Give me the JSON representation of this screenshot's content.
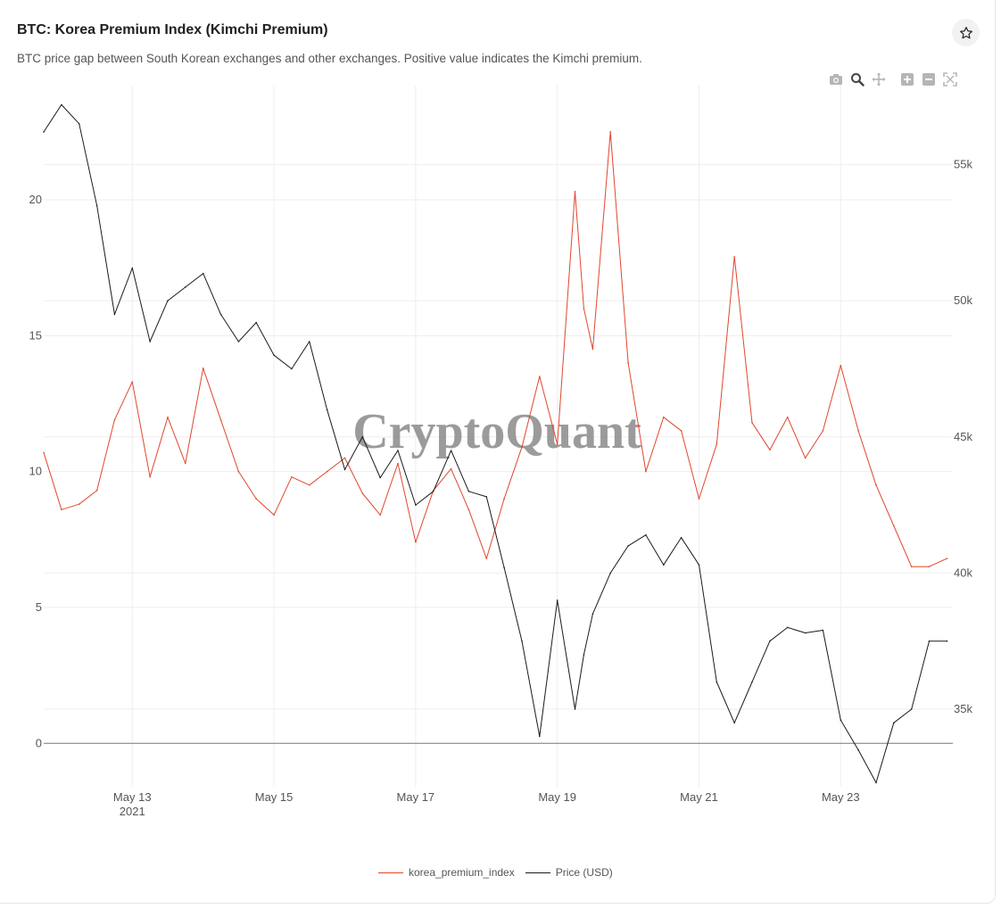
{
  "header": {
    "title": "BTC: Korea Premium Index (Kimchi Premium)",
    "subtitle": "BTC price gap between South Korean exchanges and other exchanges. Positive value indicates the Kimchi premium."
  },
  "icons": {
    "star": "star-icon",
    "modebar": [
      "camera-icon",
      "zoom-icon",
      "pan-icon",
      "zoom-in-icon",
      "zoom-out-icon",
      "autoscale-icon"
    ]
  },
  "watermark": "CryptoQuant",
  "colors": {
    "premium": "#e0462d",
    "price": "#1a1a1a",
    "zero_line": "#777777",
    "grid": "#eeeeee"
  },
  "chart_data": {
    "type": "line",
    "title": "BTC: Korea Premium Index (Kimchi Premium)",
    "x_range": [
      "2021-05-11T18:00",
      "2021-05-24T14:00"
    ],
    "x_ticks": [
      {
        "date": "2021-05-13",
        "label": "May 13",
        "sublabel": "2021"
      },
      {
        "date": "2021-05-15",
        "label": "May 15",
        "sublabel": ""
      },
      {
        "date": "2021-05-17",
        "label": "May 17",
        "sublabel": ""
      },
      {
        "date": "2021-05-19",
        "label": "May 19",
        "sublabel": ""
      },
      {
        "date": "2021-05-21",
        "label": "May 21",
        "sublabel": ""
      },
      {
        "date": "2021-05-23",
        "label": "May 23",
        "sublabel": ""
      }
    ],
    "y_left": {
      "range": [
        -1.6,
        24.2
      ],
      "ticks": [
        0,
        5,
        10,
        15,
        20
      ],
      "tick_labels": [
        "0",
        "5",
        "10",
        "15",
        "20"
      ]
    },
    "y_right": {
      "range": [
        32150,
        57900
      ],
      "ticks": [
        35000,
        40000,
        45000,
        50000,
        55000
      ],
      "tick_labels": [
        "35k",
        "40k",
        "45k",
        "50k",
        "55k"
      ]
    },
    "grid": true,
    "legend_position": "bottom-center",
    "series": [
      {
        "name": "korea_premium_index",
        "axis": "left",
        "color": "#e0462d",
        "x": [
          "2021-05-11T18:00",
          "2021-05-12T00:00",
          "2021-05-12T06:00",
          "2021-05-12T12:00",
          "2021-05-12T18:00",
          "2021-05-13T00:00",
          "2021-05-13T06:00",
          "2021-05-13T12:00",
          "2021-05-13T18:00",
          "2021-05-14T00:00",
          "2021-05-14T06:00",
          "2021-05-14T12:00",
          "2021-05-14T18:00",
          "2021-05-15T00:00",
          "2021-05-15T06:00",
          "2021-05-15T12:00",
          "2021-05-15T18:00",
          "2021-05-16T00:00",
          "2021-05-16T06:00",
          "2021-05-16T12:00",
          "2021-05-16T18:00",
          "2021-05-17T00:00",
          "2021-05-17T06:00",
          "2021-05-17T12:00",
          "2021-05-17T18:00",
          "2021-05-18T00:00",
          "2021-05-18T06:00",
          "2021-05-18T12:00",
          "2021-05-18T18:00",
          "2021-05-19T00:00",
          "2021-05-19T06:00",
          "2021-05-19T09:00",
          "2021-05-19T12:00",
          "2021-05-19T18:00",
          "2021-05-20T00:00",
          "2021-05-20T06:00",
          "2021-05-20T12:00",
          "2021-05-20T18:00",
          "2021-05-21T00:00",
          "2021-05-21T06:00",
          "2021-05-21T12:00",
          "2021-05-21T18:00",
          "2021-05-22T00:00",
          "2021-05-22T06:00",
          "2021-05-22T12:00",
          "2021-05-22T18:00",
          "2021-05-23T00:00",
          "2021-05-23T06:00",
          "2021-05-23T12:00",
          "2021-05-23T18:00",
          "2021-05-24T00:00",
          "2021-05-24T06:00",
          "2021-05-24T12:00"
        ],
        "values": [
          10.7,
          8.6,
          8.8,
          9.3,
          11.9,
          13.3,
          9.8,
          12.0,
          10.3,
          13.8,
          11.9,
          10.0,
          9.0,
          8.4,
          9.8,
          9.5,
          10.0,
          10.5,
          9.2,
          8.4,
          10.3,
          7.4,
          9.3,
          10.1,
          8.6,
          6.8,
          9.0,
          10.9,
          13.5,
          11.0,
          20.3,
          16.0,
          14.5,
          22.5,
          14.0,
          10.0,
          12.0,
          11.5,
          9.0,
          11.0,
          17.9,
          11.8,
          10.8,
          12.0,
          10.5,
          11.5,
          13.9,
          11.5,
          9.5,
          8.0,
          6.5,
          6.5,
          6.8
        ]
      },
      {
        "name": "Price (USD)",
        "axis": "right",
        "color": "#1a1a1a",
        "x": [
          "2021-05-11T18:00",
          "2021-05-12T00:00",
          "2021-05-12T06:00",
          "2021-05-12T12:00",
          "2021-05-12T18:00",
          "2021-05-13T00:00",
          "2021-05-13T06:00",
          "2021-05-13T12:00",
          "2021-05-13T18:00",
          "2021-05-14T00:00",
          "2021-05-14T06:00",
          "2021-05-14T12:00",
          "2021-05-14T18:00",
          "2021-05-15T00:00",
          "2021-05-15T06:00",
          "2021-05-15T12:00",
          "2021-05-15T18:00",
          "2021-05-16T00:00",
          "2021-05-16T06:00",
          "2021-05-16T12:00",
          "2021-05-16T18:00",
          "2021-05-17T00:00",
          "2021-05-17T06:00",
          "2021-05-17T12:00",
          "2021-05-17T18:00",
          "2021-05-18T00:00",
          "2021-05-18T06:00",
          "2021-05-18T12:00",
          "2021-05-18T18:00",
          "2021-05-19T00:00",
          "2021-05-19T06:00",
          "2021-05-19T09:00",
          "2021-05-19T12:00",
          "2021-05-19T18:00",
          "2021-05-20T00:00",
          "2021-05-20T06:00",
          "2021-05-20T12:00",
          "2021-05-20T18:00",
          "2021-05-21T00:00",
          "2021-05-21T06:00",
          "2021-05-21T12:00",
          "2021-05-21T18:00",
          "2021-05-22T00:00",
          "2021-05-22T06:00",
          "2021-05-22T12:00",
          "2021-05-22T18:00",
          "2021-05-23T00:00",
          "2021-05-23T06:00",
          "2021-05-23T12:00",
          "2021-05-23T18:00",
          "2021-05-24T00:00",
          "2021-05-24T06:00",
          "2021-05-24T12:00"
        ],
        "values": [
          56200,
          57200,
          56500,
          53500,
          49500,
          51200,
          48500,
          50000,
          50500,
          51000,
          49500,
          48500,
          49200,
          48000,
          47500,
          48500,
          46000,
          43800,
          45000,
          43500,
          44500,
          42500,
          43000,
          44500,
          43000,
          42800,
          40200,
          37500,
          34000,
          39000,
          35000,
          37000,
          38500,
          40000,
          41000,
          41400,
          40300,
          41300,
          40300,
          36000,
          34500,
          36000,
          37500,
          38000,
          37800,
          37900,
          34600,
          33500,
          32300,
          34500,
          35000,
          37500,
          37500
        ]
      }
    ]
  },
  "legend": {
    "premium_label": "korea_premium_index",
    "price_label": "Price (USD)"
  }
}
